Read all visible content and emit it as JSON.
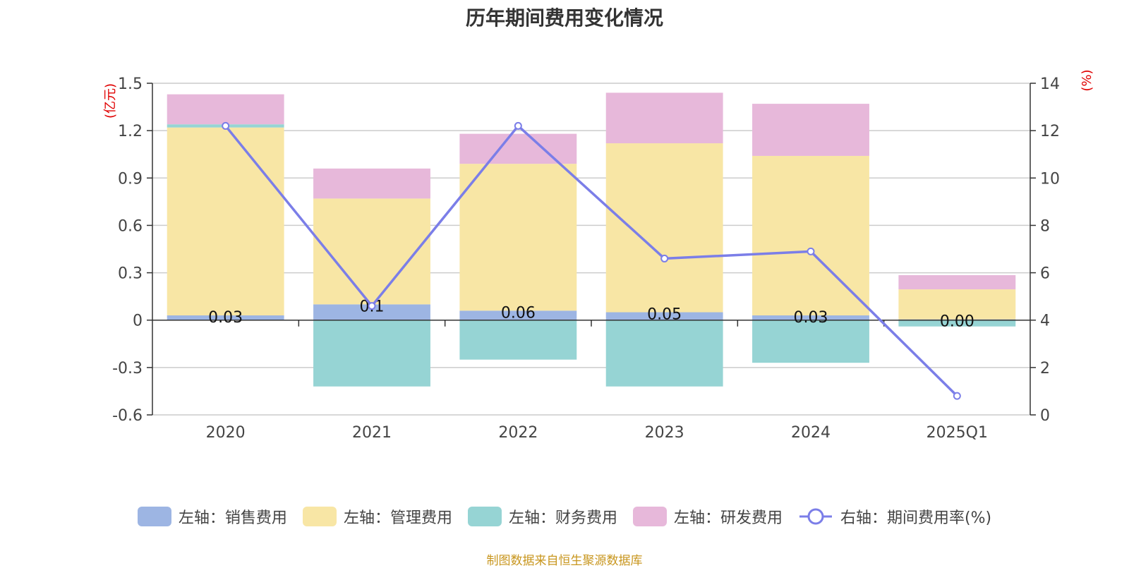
{
  "title": "历年期间费用变化情况",
  "source_note": "制图数据来自恒生聚源数据库",
  "colors": {
    "sales": "#9db5e3",
    "admin": "#f8e6a5",
    "finance": "#96d4d4",
    "rd": "#e7b8da",
    "rate": "#7b7ee8",
    "grid": "#cccccc",
    "unit": "#e00000"
  },
  "chart_data": {
    "type": "bar",
    "stacked": true,
    "categories": [
      "2020",
      "2021",
      "2022",
      "2023",
      "2024",
      "2025Q1"
    ],
    "left_axis": {
      "unit_label": "(亿元)",
      "ylim": [
        -0.6,
        1.5
      ],
      "ticks": [
        "-0.6",
        "-0.3",
        "0",
        "0.3",
        "0.6",
        "0.9",
        "1.2",
        "1.5"
      ]
    },
    "right_axis": {
      "unit_label": "(%)",
      "ylim": [
        0,
        14
      ],
      "ticks": [
        "0",
        "2",
        "4",
        "6",
        "8",
        "10",
        "12",
        "14"
      ]
    },
    "series": [
      {
        "name": "左轴：销售费用",
        "color_key": "sales",
        "type": "bar",
        "axis": "left",
        "values": [
          0.03,
          0.1,
          0.06,
          0.05,
          0.03,
          0.005
        ],
        "labels": [
          "0.03",
          "0.1",
          "0.06",
          "0.05",
          "0.03",
          "0.00"
        ]
      },
      {
        "name": "左轴：管理费用",
        "color_key": "admin",
        "type": "bar",
        "axis": "left",
        "values": [
          1.19,
          0.67,
          0.93,
          1.07,
          1.01,
          0.19
        ]
      },
      {
        "name": "左轴：财务费用",
        "color_key": "finance",
        "type": "bar",
        "axis": "left",
        "values": [
          0.02,
          -0.42,
          -0.25,
          -0.42,
          -0.27,
          -0.04
        ]
      },
      {
        "name": "左轴：研发费用",
        "color_key": "rd",
        "type": "bar",
        "axis": "left",
        "values": [
          0.19,
          0.19,
          0.19,
          0.32,
          0.33,
          0.09
        ]
      },
      {
        "name": "右轴：期间费用率(%)",
        "color_key": "rate",
        "type": "line",
        "axis": "right",
        "values": [
          12.2,
          4.6,
          12.2,
          6.6,
          6.9,
          0.8
        ]
      }
    ],
    "grid": true,
    "legend_position": "bottom"
  }
}
